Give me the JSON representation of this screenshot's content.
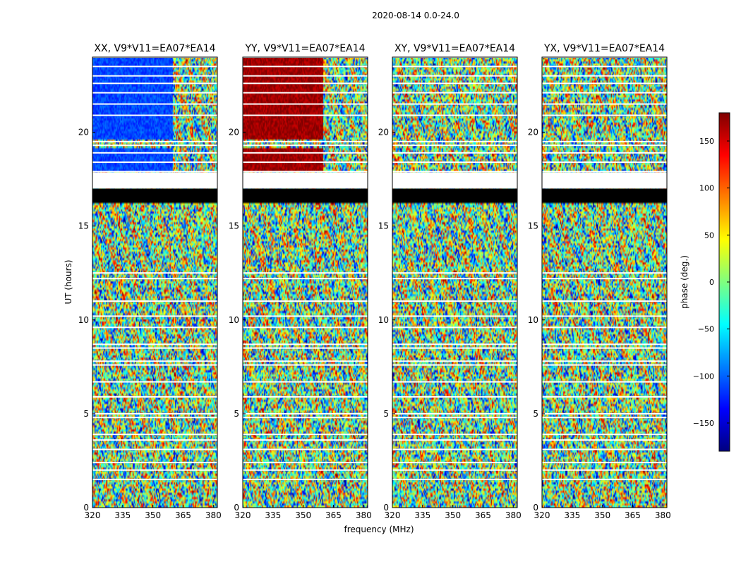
{
  "figure": {
    "suptitle": "2020-08-14 0.0-24.0"
  },
  "colors": {
    "colormap": [
      "#00007f",
      "#0000ff",
      "#007fff",
      "#00ffff",
      "#7fff7f",
      "#ffff00",
      "#ff7f00",
      "#ff0000",
      "#7f0000"
    ],
    "flagged": "#ffffff",
    "blanked": "#000000"
  },
  "chart_data": [
    {
      "type": "heatmap",
      "title": "XX, V9*V11=EA07*EA14",
      "xlabel": "",
      "ylabel": "UT (hours)",
      "xlim": [
        320,
        382
      ],
      "ylim": [
        0,
        24
      ],
      "xticks": [
        "320",
        "335",
        "350",
        "365",
        "380"
      ],
      "yticks": [
        "0",
        "5",
        "10",
        "15",
        "20"
      ],
      "dominant_phase_regions": [
        {
          "ut": [
            19.6,
            24.0
          ],
          "freq_mhz": [
            320,
            360
          ],
          "phase_deg": -110
        },
        {
          "ut": [
            17.9,
            19.1
          ],
          "freq_mhz": [
            320,
            360
          ],
          "phase_deg": -110
        },
        {
          "ut": [
            16.2,
            17.0
          ],
          "freq_mhz": [
            320,
            382
          ],
          "phase_deg": null
        }
      ]
    },
    {
      "type": "heatmap",
      "title": "YY, V9*V11=EA07*EA14",
      "xlabel": "frequency (MHz)",
      "ylabel": "",
      "xlim": [
        320,
        382
      ],
      "ylim": [
        0,
        24
      ],
      "xticks": [
        "320",
        "335",
        "350",
        "365",
        "380"
      ],
      "yticks": [
        "0",
        "5",
        "10",
        "15",
        "20"
      ],
      "dominant_phase_regions": [
        {
          "ut": [
            19.6,
            24.0
          ],
          "freq_mhz": [
            320,
            360
          ],
          "phase_deg": 170
        },
        {
          "ut": [
            17.9,
            19.1
          ],
          "freq_mhz": [
            320,
            360
          ],
          "phase_deg": 170
        },
        {
          "ut": [
            16.2,
            17.0
          ],
          "freq_mhz": [
            320,
            382
          ],
          "phase_deg": null
        }
      ]
    },
    {
      "type": "heatmap",
      "title": "XY, V9*V11=EA07*EA14",
      "xlabel": "",
      "ylabel": "",
      "xlim": [
        320,
        382
      ],
      "ylim": [
        0,
        24
      ],
      "xticks": [
        "320",
        "335",
        "350",
        "365",
        "380"
      ],
      "yticks": [
        "0",
        "5",
        "10",
        "15",
        "20"
      ],
      "dominant_phase_regions": [
        {
          "ut": [
            16.2,
            17.0
          ],
          "freq_mhz": [
            320,
            382
          ],
          "phase_deg": null
        }
      ]
    },
    {
      "type": "heatmap",
      "title": "YX, V9*V11=EA07*EA14",
      "xlabel": "",
      "ylabel": "",
      "xlim": [
        320,
        382
      ],
      "ylim": [
        0,
        24
      ],
      "xticks": [
        "320",
        "335",
        "350",
        "365",
        "380"
      ],
      "yticks": [
        "0",
        "5",
        "10",
        "15",
        "20"
      ],
      "dominant_phase_regions": [
        {
          "ut": [
            16.2,
            17.0
          ],
          "freq_mhz": [
            320,
            382
          ],
          "phase_deg": null
        }
      ]
    }
  ],
  "flagged_ut_hours": [
    24.0,
    23.5,
    23.0,
    22.6,
    22.1,
    21.5,
    20.9,
    19.5,
    19.3,
    18.9,
    18.4,
    17.9,
    17.6,
    17.3,
    12.5,
    12.2,
    11.0,
    10.2,
    9.6,
    8.7,
    8.5,
    7.8,
    7.6,
    6.7,
    5.9,
    5.0,
    4.8,
    3.9,
    3.6,
    3.1,
    2.4,
    2.0,
    1.5
  ],
  "colorbar": {
    "label": "phase (deg.)",
    "range": [
      -180,
      180
    ],
    "ticks": [
      "150",
      "100",
      "50",
      "0",
      "−50",
      "−100",
      "−150"
    ],
    "tick_values": [
      150,
      100,
      50,
      0,
      -50,
      -100,
      -150
    ]
  }
}
